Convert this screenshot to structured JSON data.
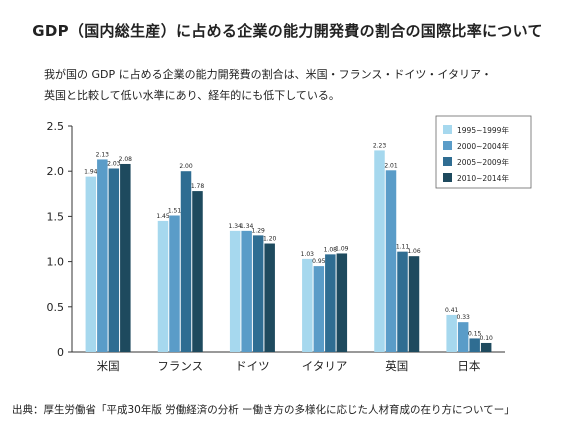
{
  "title": "GDP（国内総生産）に占める企業の能力開発費の割合の国際比率について",
  "subtitle_lines": [
    "我が国の GDP に占める企業の能力開発費の割合は、米国・フランス・ドイツ・イタリア・",
    "英国と比較して低い水準にあり、経年的にも低下している。"
  ],
  "source": "出典：厚生労働省「平成30年版 労働経済の分析 ー働き方の多様化に応じた人材育成の在り方についてー」",
  "chart_data": {
    "type": "bar",
    "categories": [
      "米国",
      "フランス",
      "ドイツ",
      "イタリア",
      "英国",
      "日本"
    ],
    "series": [
      {
        "name": "1995~1999年",
        "color": "#a6d8ee",
        "values": [
          1.94,
          1.45,
          1.34,
          1.03,
          2.23,
          0.41
        ]
      },
      {
        "name": "2000~2004年",
        "color": "#5a9cc8",
        "values": [
          2.13,
          1.51,
          1.34,
          0.95,
          2.01,
          0.33
        ]
      },
      {
        "name": "2005~2009年",
        "color": "#2f6d92",
        "values": [
          2.03,
          2.0,
          1.29,
          1.08,
          1.11,
          0.15
        ]
      },
      {
        "name": "2010~2014年",
        "color": "#1e4a5e",
        "values": [
          2.08,
          1.78,
          1.2,
          1.09,
          1.06,
          0.1
        ]
      }
    ],
    "data_labels": [
      [
        "1.94",
        "1.45",
        "1.34",
        "1.03",
        "2.23",
        "0.41"
      ],
      [
        "2.13",
        "1.51",
        "1.34",
        "0.95",
        "2.01",
        "0.33"
      ],
      [
        "2.03",
        "2.00",
        "1.29",
        "1.08",
        "1.11",
        "0.15"
      ],
      [
        "2.08",
        "1.78",
        "1.20",
        "1.09",
        "1.06",
        "0.10"
      ]
    ],
    "ylim": [
      0,
      2.5
    ],
    "yticks": [
      "0",
      "0.5",
      "1.0",
      "1.5",
      "2.0",
      "2.5"
    ],
    "grid": false,
    "legend_position": "top-right"
  }
}
